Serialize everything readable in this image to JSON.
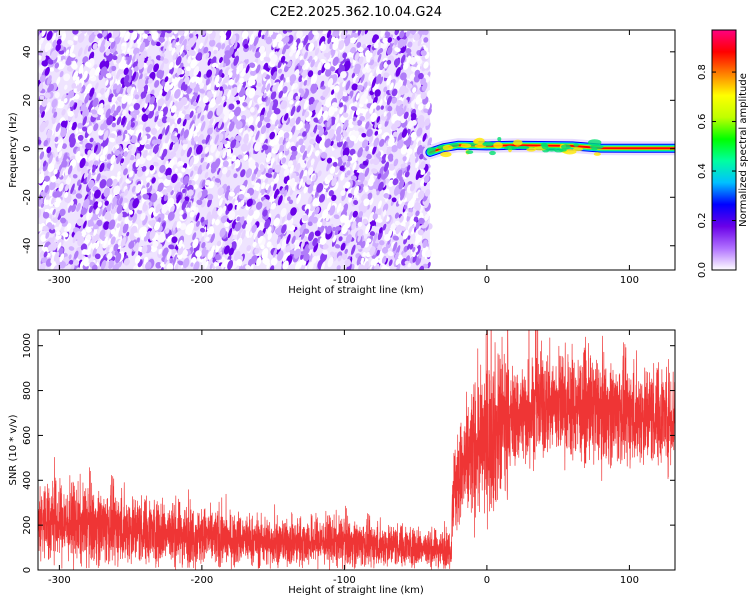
{
  "title": "C2E2.2025.362.10.04.G24",
  "chart_data": [
    {
      "type": "heatmap",
      "xlabel": "Height of straight line (km)",
      "ylabel": "Frequency (Hz)",
      "xlim": [
        -315,
        132
      ],
      "ylim": [
        -50,
        49
      ],
      "xticks": [
        -300,
        -200,
        -100,
        0,
        100
      ],
      "yticks": [
        -40,
        -20,
        0,
        20,
        40
      ],
      "xtick_labels": [
        "-300",
        "-200",
        "-100",
        "0",
        "100"
      ],
      "ytick_labels": [
        "-40",
        "-20",
        "0",
        "20",
        "40"
      ],
      "noise_region_x": [
        -315,
        -40
      ],
      "signal_region_x": [
        -40,
        132
      ],
      "signal_frequency_hz": 0.5,
      "signal_frequency_track": [
        {
          "x": -40,
          "y": -1.5
        },
        {
          "x": -30,
          "y": 0.5
        },
        {
          "x": -20,
          "y": 1.5
        },
        {
          "x": 0,
          "y": 1.2
        },
        {
          "x": 20,
          "y": 1.5
        },
        {
          "x": 60,
          "y": 1.2
        },
        {
          "x": 80,
          "y": 0.3
        },
        {
          "x": 132,
          "y": 0.2
        }
      ],
      "colorbar": {
        "label": "Normalized spectral amplitude",
        "range": [
          0,
          0.97
        ],
        "ticks": [
          0.0,
          0.2,
          0.4,
          0.6,
          0.8
        ],
        "tick_labels": [
          "0.0",
          "0.2",
          "0.4",
          "0.6",
          "0.8"
        ],
        "colormap": [
          "#ffffff",
          "#b070ff",
          "#6a00e8",
          "#0000ff",
          "#00c0ff",
          "#00ffa0",
          "#00ff00",
          "#c0ff00",
          "#ffff00",
          "#ff8000",
          "#ff0000",
          "#ff0080"
        ]
      }
    },
    {
      "type": "line",
      "xlabel": "Height of straight line (km)",
      "ylabel": "SNR (10 * v/v)",
      "xlim": [
        -315,
        132
      ],
      "ylim": [
        0,
        1070
      ],
      "xticks": [
        -300,
        -200,
        -100,
        0,
        100
      ],
      "yticks": [
        0,
        200,
        400,
        600,
        800,
        1000
      ],
      "xtick_labels": [
        "-300",
        "-200",
        "-100",
        "0",
        "100"
      ],
      "ytick_labels": [
        "0",
        "200",
        "400",
        "600",
        "800",
        "1000"
      ],
      "color": "#ef3535",
      "series": [
        {
          "x": [
            -315,
            -300,
            -280,
            -260,
            -240,
            -220,
            -200,
            -180,
            -160,
            -140,
            -120,
            -100,
            -80,
            -60,
            -40,
            -25,
            -24,
            -15,
            -10,
            -5,
            0,
            10,
            20,
            30,
            40,
            50,
            60,
            70,
            80,
            90,
            100,
            110,
            120,
            132
          ],
          "y": [
            220,
            210,
            200,
            195,
            175,
            165,
            150,
            140,
            130,
            120,
            130,
            125,
            115,
            110,
            95,
            95,
            350,
            460,
            530,
            560,
            590,
            640,
            690,
            710,
            740,
            740,
            730,
            720,
            715,
            710,
            700,
            695,
            690,
            690
          ]
        }
      ]
    }
  ]
}
